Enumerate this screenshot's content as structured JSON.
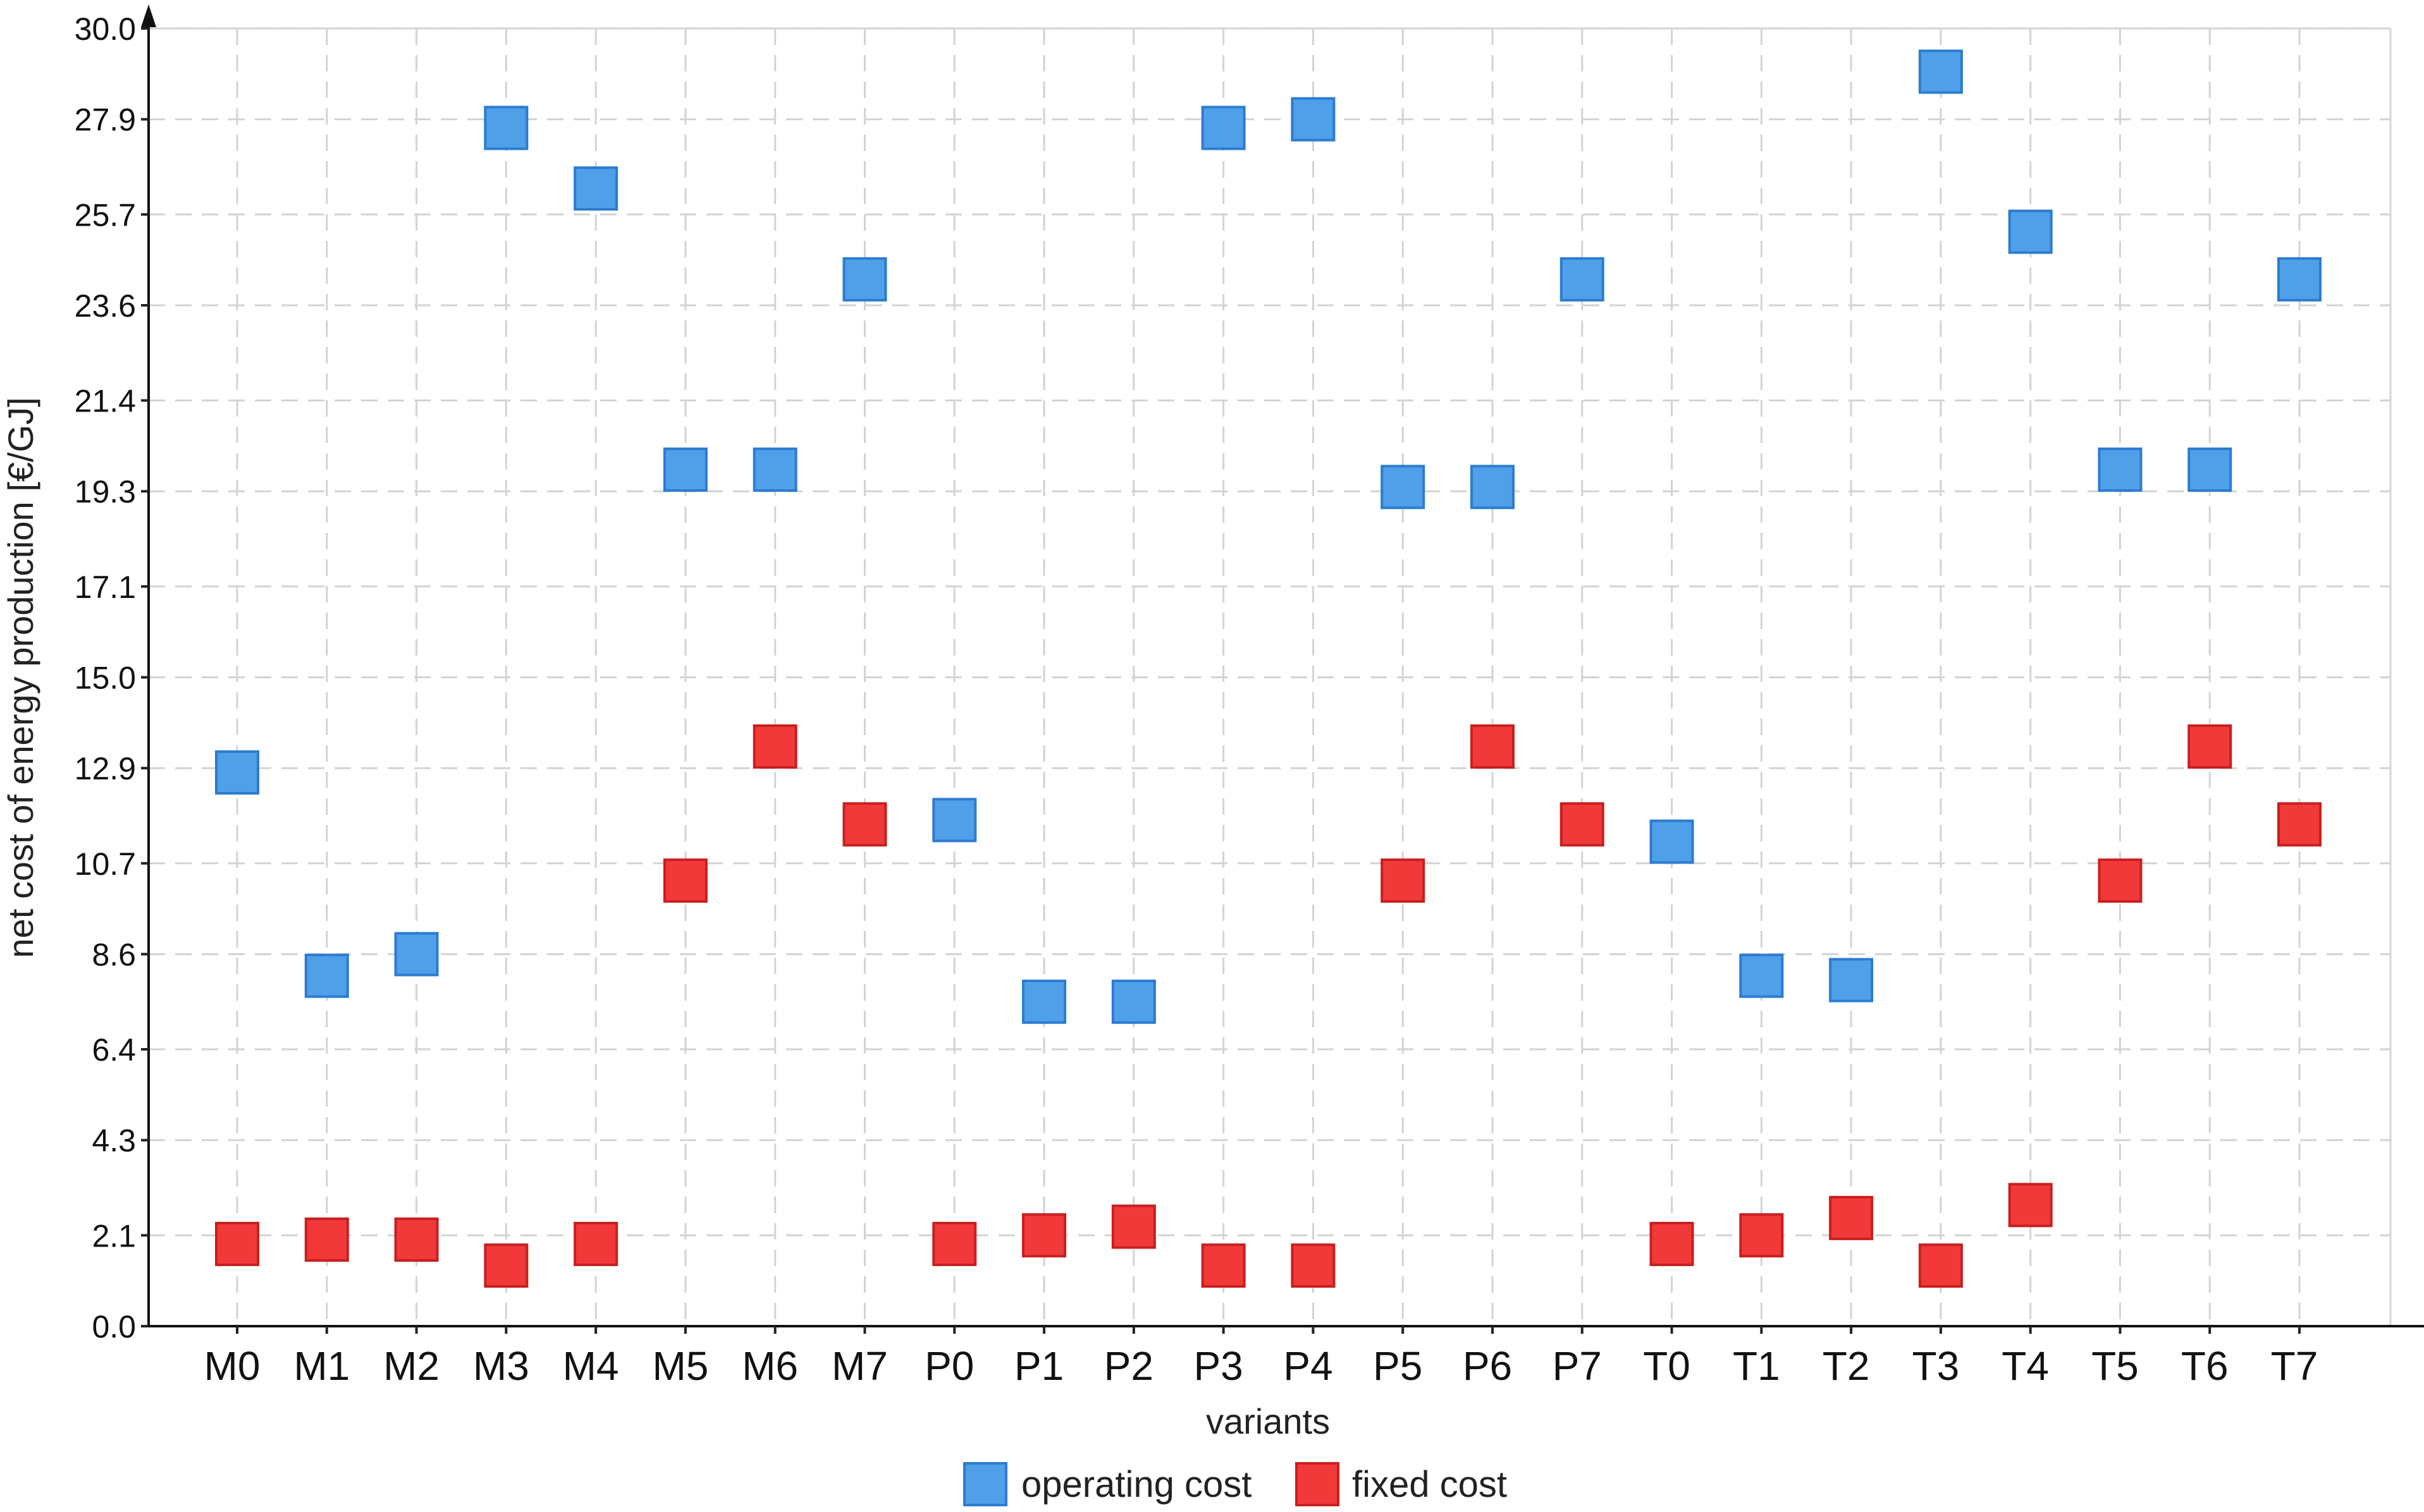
{
  "chart_data": {
    "type": "scatter",
    "title": "",
    "xlabel": "variants",
    "ylabel": "net cost of energy production [€/GJ]",
    "ylim": [
      0,
      30
    ],
    "yticks": [
      "0.0",
      "2.1",
      "4.3",
      "6.4",
      "8.6",
      "10.7",
      "12.9",
      "15.0",
      "17.1",
      "19.3",
      "21.4",
      "23.6",
      "25.7",
      "27.9",
      "30.0"
    ],
    "grid": true,
    "legend_position": "bottom-center",
    "categories": [
      "M0",
      "M1",
      "M2",
      "M3",
      "M4",
      "M5",
      "M6",
      "M7",
      "P0",
      "P1",
      "P2",
      "P3",
      "P4",
      "P5",
      "P6",
      "P7",
      "T0",
      "T1",
      "T2",
      "T3",
      "T4",
      "T5",
      "T6",
      "T7"
    ],
    "series": [
      {
        "name": "operating cost",
        "color": "#4f9fe9",
        "values": [
          12.8,
          8.1,
          8.6,
          27.7,
          26.3,
          19.8,
          19.8,
          24.2,
          11.7,
          7.5,
          7.5,
          27.7,
          27.9,
          19.4,
          19.4,
          24.2,
          11.2,
          8.1,
          8.0,
          29.0,
          25.3,
          19.8,
          19.8,
          24.2
        ]
      },
      {
        "name": "fixed cost",
        "color": "#f2393a",
        "values": [
          1.9,
          2.0,
          2.0,
          1.4,
          1.9,
          10.3,
          13.4,
          11.6,
          1.9,
          2.1,
          2.3,
          1.4,
          1.4,
          10.3,
          13.4,
          11.6,
          1.9,
          2.1,
          2.5,
          1.4,
          2.8,
          10.3,
          13.4,
          11.6
        ]
      }
    ]
  }
}
